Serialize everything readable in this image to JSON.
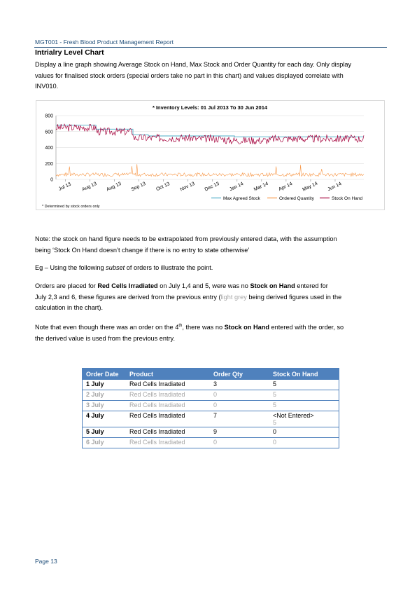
{
  "header": {
    "text": "MGT001 - Fresh Blood Product Management Report"
  },
  "section_title": "Intrialry Level Chart",
  "intro": {
    "line1": "Display a line graph showing Average Stock on Hand, Max Stock and Order Quantity for each day. Only display",
    "line2": "values for finalised stock orders (special orders take no part in this chart) and values displayed correlate with",
    "line3": "INV010."
  },
  "chart_data": {
    "type": "line",
    "title": "* Inventory Levels: 01 Jul 2013 To 30 Jun 2014",
    "xlabel": "",
    "ylabel": "",
    "ylim": [
      0,
      800
    ],
    "yticks": [
      0,
      200,
      400,
      600,
      800
    ],
    "xticks": [
      "Jul 13",
      "Aug 13",
      "Aug 13",
      "Sep 13",
      "Oct 13",
      "Nov 13",
      "Dec 13",
      "Jan 14",
      "Mar 14",
      "Apr 14",
      "May 14",
      "Jun 14"
    ],
    "grid": true,
    "legend_position": "bottom-right",
    "footnote": "* Determined by stock orders only",
    "series": [
      {
        "name": "Max Agreed Stock",
        "color": "#4bacc6",
        "points": [
          [
            0,
            680
          ],
          [
            0.13,
            680
          ],
          [
            0.13,
            630
          ],
          [
            0.25,
            630
          ],
          [
            0.25,
            560
          ],
          [
            0.3,
            560
          ],
          [
            0.3,
            545
          ],
          [
            0.58,
            545
          ],
          [
            0.58,
            535
          ],
          [
            1.0,
            535
          ]
        ]
      },
      {
        "name": "Ordered Quantity",
        "color": "#f79646",
        "base": 60,
        "amplitude": 45,
        "noise_seed": 7
      },
      {
        "name": "Stock On Hand",
        "color": "#a5003b",
        "levels": [
          [
            0,
            650
          ],
          [
            0.13,
            600
          ],
          [
            0.25,
            520
          ],
          [
            0.45,
            510
          ],
          [
            0.55,
            490
          ],
          [
            0.7,
            510
          ],
          [
            1.0,
            520
          ]
        ],
        "amplitude": 60,
        "noise_seed": 3
      }
    ]
  },
  "note1": {
    "line1": "Note: the stock on hand figure needs to be extrapolated from previously entered data, with the assumption",
    "line2": "being ‘Stock On Hand doesn’t change if there is no entry to state otherwise’"
  },
  "example": {
    "prefix": "Eg – Using the following ",
    "subset": "subset",
    "suffix": " of orders to illustrate the point."
  },
  "orders_para": {
    "t1": "Orders are placed for ",
    "b1": "Red Cells Irradiated",
    "t2": " on July 1,4 and 5, were was no ",
    "b2": "Stock on Hand",
    "t3": " entered for",
    "t4": "July 2,3 and 6, these figures are derived from the previous entry (",
    "grey": "light grey",
    "t5": " being derived figures used in the",
    "t6": "calculation in the chart)."
  },
  "note2": {
    "t1": "Note that even though there was an order on the 4",
    "sup": "th",
    "t2": ", there was no ",
    "b": "Stock on Hand",
    "t3": " entered with the order, so",
    "t4": "the derived value is used from the previous entry."
  },
  "table": {
    "headers": [
      "Order Date",
      "Product",
      "Order Qty",
      "Stock On Hand"
    ],
    "rows": [
      {
        "date": "1 July",
        "product": "Red Cells Irradiated",
        "qty": "3",
        "soh": "5",
        "soh2": "",
        "derived": false
      },
      {
        "date": "2 July",
        "product": "Red Cells Irradiated",
        "qty": "0",
        "soh": "5",
        "soh2": "",
        "derived": true
      },
      {
        "date": "3 July",
        "product": "Red Cells Irradiated",
        "qty": "0",
        "soh": "5",
        "soh2": "",
        "derived": true
      },
      {
        "date": "4 July",
        "product": "Red Cells Irradiated",
        "qty": "7",
        "soh": "<Not Entered>",
        "soh2": "5",
        "derived": false
      },
      {
        "date": "5 July",
        "product": "Red Cells Irradiated",
        "qty": "9",
        "soh": "0",
        "soh2": "",
        "derived": false
      },
      {
        "date": "6 July",
        "product": "Red Cells Irradiated",
        "qty": "0",
        "soh": "0",
        "soh2": "",
        "derived": true
      }
    ]
  },
  "footer": {
    "page": "Page 13"
  }
}
